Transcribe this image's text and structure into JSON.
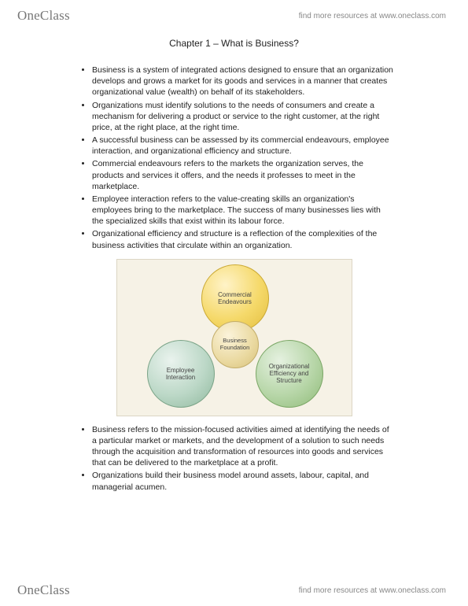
{
  "brand": {
    "logo_text": "OneClass",
    "tagline": "find more resources at www.oneclass.com"
  },
  "chapter": {
    "title": "Chapter 1 – What is Business?"
  },
  "bullets_top": [
    "Business is a system of integrated actions designed to ensure that an organization develops and grows a market for its goods and services in a manner that creates organizational value (wealth) on behalf of its stakeholders.",
    "Organizations must identify solutions to the needs of consumers and create a mechanism for delivering a product or service to the right customer, at the right price, at the right place, at the right time.",
    "A successful business can be assessed by its commercial endeavours, employee interaction, and organizational efficiency and structure.",
    "Commercial endeavours refers to the markets the organization serves, the products and services it offers, and the needs it professes to meet in the marketplace.",
    "Employee interaction refers to the value-creating skills an organization's employees bring to the marketplace. The success of many businesses lies with the specialized skills that exist within its labour force.",
    "Organizational efficiency and structure is a reflection of the complexities of the business activities that circulate within an organization."
  ],
  "diagram": {
    "type": "venn-triangle",
    "background_color": "#f6f2e6",
    "border_color": "#dcd6c4",
    "nodes": {
      "top": {
        "label": "Commercial Endeavours",
        "fill": "#f5d96a",
        "stroke": "#caa832"
      },
      "center": {
        "label": "Business Foundation",
        "fill": "#ead9a0",
        "stroke": "#c3ad6a"
      },
      "left": {
        "label": "Employee Interaction",
        "fill": "#bcd8c7",
        "stroke": "#7aa387"
      },
      "right": {
        "label": "Organizational Efficiency and Structure",
        "fill": "#b7d6a8",
        "stroke": "#7aa665"
      }
    },
    "label_fontsize": 8,
    "label_color": "#444444"
  },
  "bullets_bottom": [
    "Business refers to the mission-focused activities aimed at identifying the needs of a particular market or markets, and the development of a solution to such needs through the acquisition and transformation of resources into goods and services that can be delivered to the marketplace at a profit.",
    "Organizations build their business model around assets, labour, capital, and managerial acumen."
  ]
}
